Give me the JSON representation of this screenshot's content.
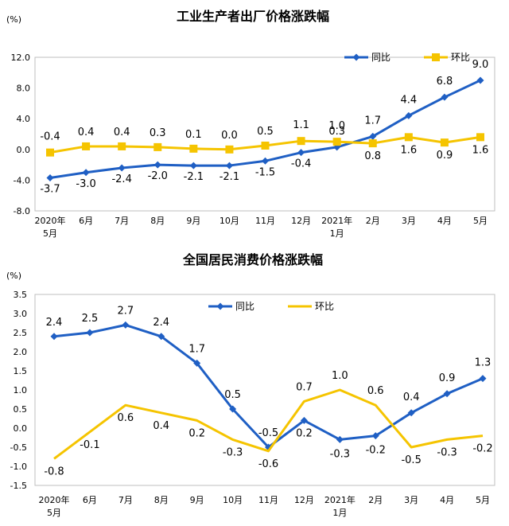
{
  "chart_data": [
    {
      "type": "line",
      "title": "工业生产者出厂价格涨跌幅",
      "unit_label": "(%)",
      "ylim": [
        -8.0,
        12.0
      ],
      "yticks": [
        "12.0",
        "8.0",
        "4.0",
        "0.0",
        "-4.0",
        "-8.0"
      ],
      "yticks_values": [
        12,
        8,
        4,
        0,
        -4,
        -8
      ],
      "categories": [
        "2020年|5月",
        "6月",
        "7月",
        "8月",
        "9月",
        "10月",
        "11月",
        "12月",
        "2021年|1月",
        "2月",
        "3月",
        "4月",
        "5月"
      ],
      "legend_placement": "top-right",
      "series": [
        {
          "name": "同比",
          "color": "#1f5fc4",
          "marker": "diamond",
          "values": [
            -3.7,
            -3.0,
            -2.4,
            -2.0,
            -2.1,
            -2.1,
            -1.5,
            -0.4,
            0.3,
            1.7,
            4.4,
            6.8,
            9.0
          ],
          "labels": [
            "-3.7",
            "-3.0",
            "-2.4",
            "-2.0",
            "-2.1",
            "-2.1",
            "-1.5",
            "-0.4",
            "0.3",
            "1.7",
            "4.4",
            "6.8",
            "9.0"
          ]
        },
        {
          "name": "环比",
          "color": "#f5c400",
          "marker": "square",
          "values": [
            -0.4,
            0.4,
            0.4,
            0.3,
            0.1,
            0.0,
            0.5,
            1.1,
            1.0,
            0.8,
            1.6,
            0.9,
            1.6
          ],
          "labels": [
            "-0.4",
            "0.4",
            "0.4",
            "0.3",
            "0.1",
            "0.0",
            "0.5",
            "1.1",
            "1.0",
            "0.8",
            "1.6",
            "0.9",
            "1.6"
          ]
        }
      ]
    },
    {
      "type": "line",
      "title": "全国居民消费价格涨跌幅",
      "unit_label": "(%)",
      "ylim": [
        -1.5,
        3.5
      ],
      "yticks": [
        "3.5",
        "3.0",
        "2.5",
        "2.0",
        "1.5",
        "1.0",
        "0.5",
        "0.0",
        "-0.5",
        "-1.0",
        "-1.5"
      ],
      "yticks_values": [
        3.5,
        3.0,
        2.5,
        2.0,
        1.5,
        1.0,
        0.5,
        0.0,
        -0.5,
        -1.0,
        -1.5
      ],
      "categories": [
        "2020年|5月",
        "6月",
        "7月",
        "8月",
        "9月",
        "10月",
        "11月",
        "12月",
        "2021年|1月",
        "2月",
        "3月",
        "4月",
        "5月"
      ],
      "legend_placement": "top-center",
      "series": [
        {
          "name": "同比",
          "color": "#1f5fc4",
          "marker": "diamond",
          "values": [
            2.4,
            2.5,
            2.7,
            2.4,
            1.7,
            0.5,
            -0.5,
            0.2,
            -0.3,
            -0.2,
            0.4,
            0.9,
            1.3
          ],
          "labels": [
            "2.4",
            "2.5",
            "2.7",
            "2.4",
            "1.7",
            "0.5",
            "-0.5",
            "0.2",
            "-0.3",
            "-0.2",
            "0.4",
            "0.9",
            "1.3"
          ]
        },
        {
          "name": "环比",
          "color": "#f5c400",
          "marker": "none",
          "values": [
            -0.8,
            -0.1,
            0.6,
            0.4,
            0.2,
            -0.3,
            -0.6,
            0.7,
            1.0,
            0.6,
            -0.5,
            -0.3,
            -0.2
          ],
          "labels": [
            "-0.8",
            "-0.1",
            "0.6",
            "0.4",
            "0.2",
            "-0.3",
            "-0.6",
            "0.7",
            "1.0",
            "0.6",
            "-0.5",
            "-0.3",
            "-0.2"
          ]
        }
      ]
    }
  ]
}
